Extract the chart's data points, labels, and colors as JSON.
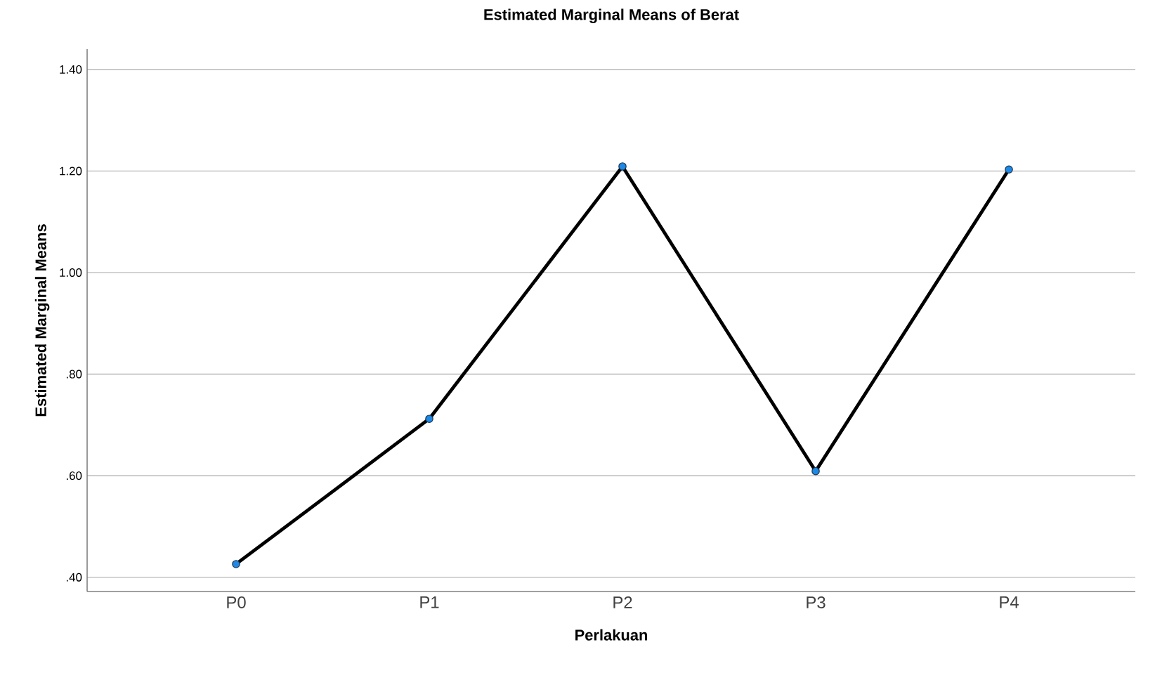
{
  "chart_data": {
    "type": "line",
    "title": "Estimated Marginal Means of Berat",
    "xlabel": "Perlakuan",
    "ylabel": "Estimated Marginal Means",
    "categories": [
      "P0",
      "P1",
      "P2",
      "P3",
      "P4"
    ],
    "series": [
      {
        "color": "#000000",
        "values": [
          0.426,
          0.712,
          1.209,
          0.609,
          1.203
        ]
      }
    ],
    "ylim": [
      0.372,
      1.44
    ],
    "yticks": [
      {
        "value": 0.4,
        "label": ".40"
      },
      {
        "value": 0.6,
        "label": ".60"
      },
      {
        "value": 0.8,
        "label": ".80"
      },
      {
        "value": 1.0,
        "label": "1.00"
      },
      {
        "value": 1.2,
        "label": "1.20"
      },
      {
        "value": 1.4,
        "label": "1.40"
      }
    ],
    "grid": "y",
    "marker": "circle",
    "line_style": "solid"
  }
}
